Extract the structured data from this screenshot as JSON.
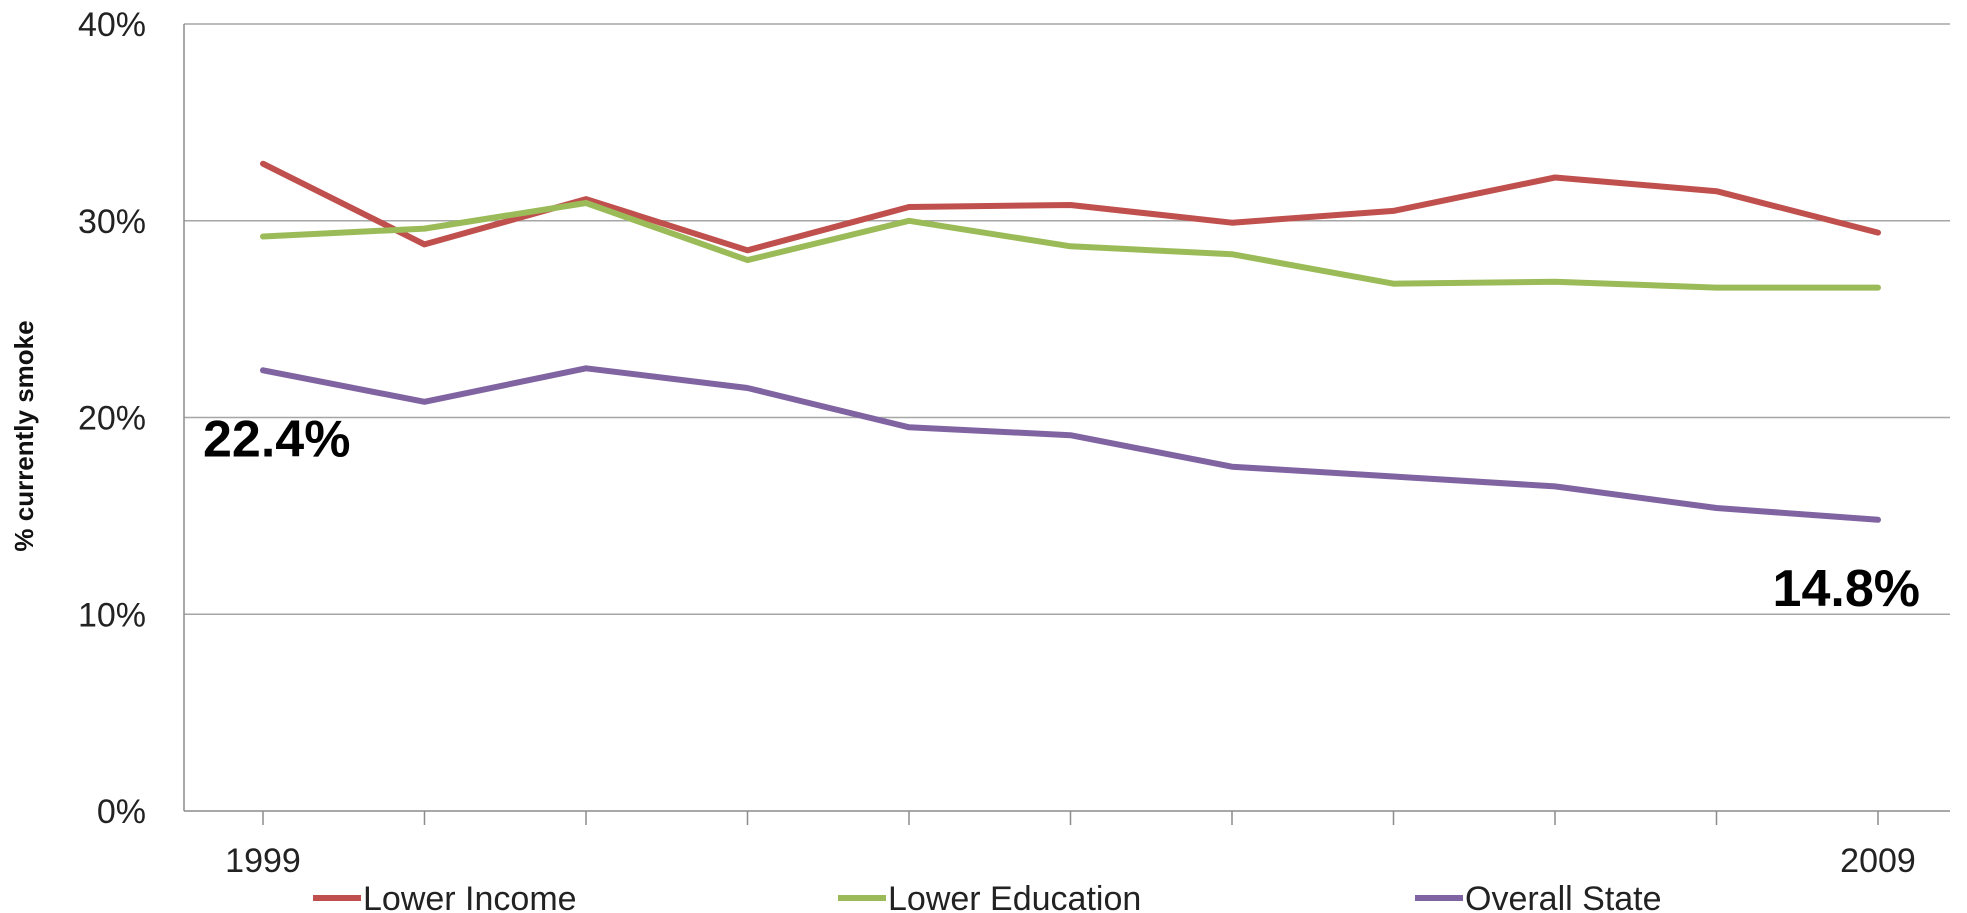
{
  "chart_data": {
    "type": "line",
    "title": "",
    "xlabel": "",
    "ylabel": "% currently smoke",
    "ylim": [
      0,
      40
    ],
    "y_ticks": [
      "0%",
      "10%",
      "20%",
      "30%",
      "40%"
    ],
    "x_tick_labels": [
      {
        "index": 0,
        "label": "1999"
      },
      {
        "index": 10,
        "label": "2009"
      }
    ],
    "x": [
      1999,
      2000,
      2001,
      2002,
      2003,
      2004,
      2005,
      2006,
      2007,
      2008,
      2009
    ],
    "grid": "horizontal",
    "legend_position": "bottom",
    "series": [
      {
        "name": "Lower Income",
        "color": "#c0504d",
        "values": [
          32.9,
          28.8,
          31.1,
          28.5,
          30.7,
          30.8,
          29.9,
          30.5,
          32.2,
          31.5,
          29.4
        ]
      },
      {
        "name": "Lower Education",
        "color": "#9bbb59",
        "values": [
          29.2,
          29.6,
          30.9,
          28.0,
          30.0,
          28.7,
          28.3,
          26.8,
          26.9,
          26.6,
          26.6
        ]
      },
      {
        "name": "Overall State",
        "color": "#8064a2",
        "values": [
          22.4,
          20.8,
          22.5,
          21.5,
          19.5,
          19.1,
          17.5,
          17.0,
          16.5,
          15.4,
          14.8
        ]
      }
    ],
    "annotations": [
      {
        "text": "22.4%",
        "series": 2,
        "index": 0
      },
      {
        "text": "14.8%",
        "series": 2,
        "index": 10
      }
    ]
  }
}
